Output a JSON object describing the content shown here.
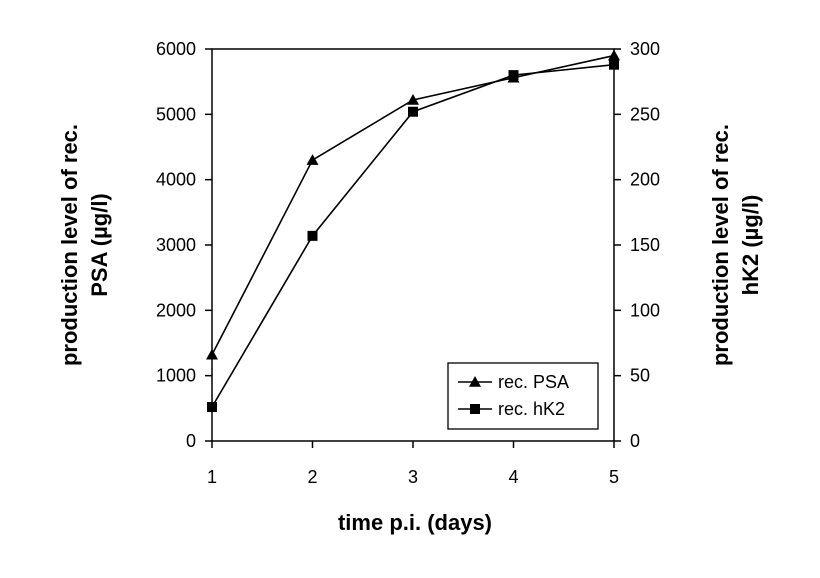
{
  "chart_data": {
    "type": "line",
    "x": [
      1,
      2,
      3,
      4,
      5
    ],
    "xlabel": "time p.i. (days)",
    "xlim": [
      1,
      5
    ],
    "xticks": [
      "1",
      "2",
      "3",
      "4",
      "5"
    ],
    "ylabel_left": [
      "production level of rec.",
      "PSA (µg/l)"
    ],
    "ylim_left": [
      0,
      6000
    ],
    "yticks_left": [
      "0",
      "1000",
      "2000",
      "3000",
      "4000",
      "5000",
      "6000"
    ],
    "ylabel_right": [
      "production level of rec.",
      "hK2 (µg/l)"
    ],
    "ylim_right": [
      0,
      300
    ],
    "yticks_right": [
      "0",
      "50",
      "100",
      "150",
      "200",
      "250",
      "300"
    ],
    "series": [
      {
        "name": "rec. PSA",
        "axis": "left",
        "marker": "triangle",
        "values": [
          1320,
          4300,
          5220,
          5560,
          5900
        ]
      },
      {
        "name": "rec. hK2",
        "axis": "right",
        "marker": "square",
        "values": [
          26,
          157,
          252,
          280,
          288
        ]
      }
    ],
    "grid": false,
    "legend_position": "bottom-right"
  }
}
